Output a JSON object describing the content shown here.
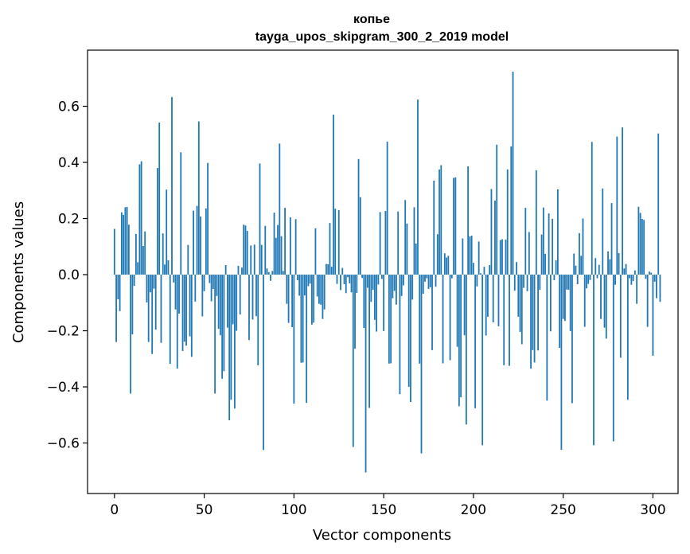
{
  "chart_data": {
    "type": "bar",
    "title_line1": "копье",
    "title_line2": "tayga_upos_skipgram_300_2_2019 model",
    "xlabel": "Vector components",
    "ylabel": "Components values",
    "xlim": [
      -15,
      314
    ],
    "ylim": [
      -0.78,
      0.8
    ],
    "x_ticks": [
      0,
      50,
      100,
      150,
      200,
      250,
      300
    ],
    "x_tick_labels": [
      "0",
      "50",
      "100",
      "150",
      "200",
      "250",
      "300"
    ],
    "y_ticks": [
      -0.6,
      -0.4,
      -0.2,
      0.0,
      0.2,
      0.4,
      0.6
    ],
    "y_tick_labels": [
      "−0.6",
      "−0.4",
      "−0.2",
      "0.0",
      "0.2",
      "0.4",
      "0.6"
    ],
    "bar_color": "#1f77b4",
    "series": [
      {
        "name": "копье",
        "values": [
          0.163,
          -0.24,
          -0.088,
          -0.13,
          0.222,
          0.213,
          0.24,
          0.241,
          0.178,
          -0.424,
          -0.213,
          -0.04,
          0.145,
          0.044,
          0.393,
          0.404,
          0.102,
          0.154,
          -0.099,
          -0.24,
          -0.063,
          -0.283,
          -0.05,
          -0.196,
          0.38,
          0.542,
          -0.243,
          0.147,
          0.036,
          0.303,
          0.051,
          -0.318,
          0.633,
          -0.028,
          -0.124,
          -0.335,
          -0.139,
          0.436,
          -0.272,
          -0.239,
          -0.253,
          0.106,
          -0.22,
          -0.293,
          0.228,
          -0.096,
          0.245,
          0.546,
          0.207,
          -0.149,
          -0.059,
          0.236,
          0.398,
          -0.03,
          -0.095,
          -0.051,
          -0.424,
          -0.076,
          -0.193,
          -0.216,
          -0.371,
          -0.344,
          0.034,
          -0.189,
          -0.519,
          -0.446,
          -0.177,
          -0.477,
          -0.2,
          0.031,
          -0.142,
          0.025,
          0.178,
          0.175,
          0.156,
          -0.233,
          0.104,
          -0.16,
          0.107,
          -0.148,
          -0.323,
          0.396,
          0.106,
          -0.625,
          0.174,
          0.022,
          0.009,
          -0.022,
          0.013,
          0.221,
          0.131,
          0.177,
          0.467,
          0.137,
          0.013,
          0.238,
          -0.104,
          -0.172,
          0.204,
          -0.187,
          -0.46,
          0.198,
          -0.02,
          -0.075,
          -0.314,
          -0.313,
          -0.074,
          -0.457,
          -0.041,
          -0.032,
          -0.178,
          -0.171,
          0.165,
          -0.078,
          -0.104,
          -0.107,
          -0.158,
          -0.124,
          0.038,
          0.037,
          0.184,
          0.028,
          0.57,
          0.235,
          -0.033,
          0.23,
          -0.055,
          0.024,
          -0.034,
          -0.066,
          -0.009,
          -0.031,
          -0.063,
          -0.614,
          -0.264,
          -0.065,
          0.412,
          0.276,
          -0.012,
          -0.19,
          -0.705,
          -0.047,
          -0.475,
          -0.097,
          -0.054,
          -0.161,
          -0.203,
          -0.035,
          0.223,
          -0.015,
          -0.201,
          0.227,
          0.474,
          -0.317,
          -0.316,
          -0.084,
          -0.058,
          -0.107,
          0.225,
          -0.426,
          -0.076,
          -0.038,
          0.266,
          0.182,
          -0.4,
          -0.454,
          -0.089,
          0.24,
          0.111,
          0.624,
          -0.317,
          -0.637,
          -0.068,
          -0.025,
          -0.013,
          -0.051,
          -0.045,
          -0.269,
          0.335,
          -0.043,
          0.144,
          0.375,
          0.39,
          -0.316,
          0.076,
          0.061,
          0.067,
          -0.305,
          -0.013,
          0.345,
          0.347,
          -0.257,
          -0.469,
          -0.437,
          0.129,
          -0.216,
          -0.534,
          0.386,
          0.136,
          0.139,
          0.042,
          -0.476,
          -0.042,
          0.118,
          0.005,
          -0.608,
          0.028,
          -0.217,
          -0.15,
          0.034,
          0.305,
          -0.17,
          0.264,
          0.463,
          -0.184,
          0.123,
          0.126,
          -0.323,
          0.125,
          0.375,
          -0.325,
          0.457,
          0.723,
          -0.057,
          0.045,
          -0.15,
          -0.204,
          -0.248,
          -0.047,
          0.238,
          -0.059,
          0.152,
          -0.335,
          -0.269,
          -0.313,
          0.372,
          -0.27,
          -0.054,
          0.143,
          0.239,
          0.074,
          -0.449,
          0.218,
          -0.202,
          0.199,
          -0.02,
          0.051,
          0.304,
          -0.261,
          -0.624,
          -0.158,
          -0.165,
          -0.053,
          -0.054,
          -0.201,
          -0.458,
          0.075,
          0.032,
          -0.034,
          0.148,
          0.067,
          0.2,
          -0.186,
          -0.049,
          -0.033,
          -0.019,
          0.473,
          -0.608,
          0.059,
          -0.013,
          0.035,
          -0.158,
          0.307,
          -0.189,
          -0.228,
          0.083,
          0.055,
          0.255,
          -0.594,
          -0.036,
          0.492,
          0.077,
          -0.296,
          0.525,
          0.022,
          0.038,
          -0.446,
          -0.013,
          -0.036,
          -0.023,
          0.015,
          -0.104,
          0.242,
          0.22,
          0.199,
          0.195,
          -0.015,
          -0.186,
          0.011,
          0.007,
          -0.289,
          -0.025,
          -0.084,
          0.503,
          -0.097
        ]
      }
    ]
  }
}
